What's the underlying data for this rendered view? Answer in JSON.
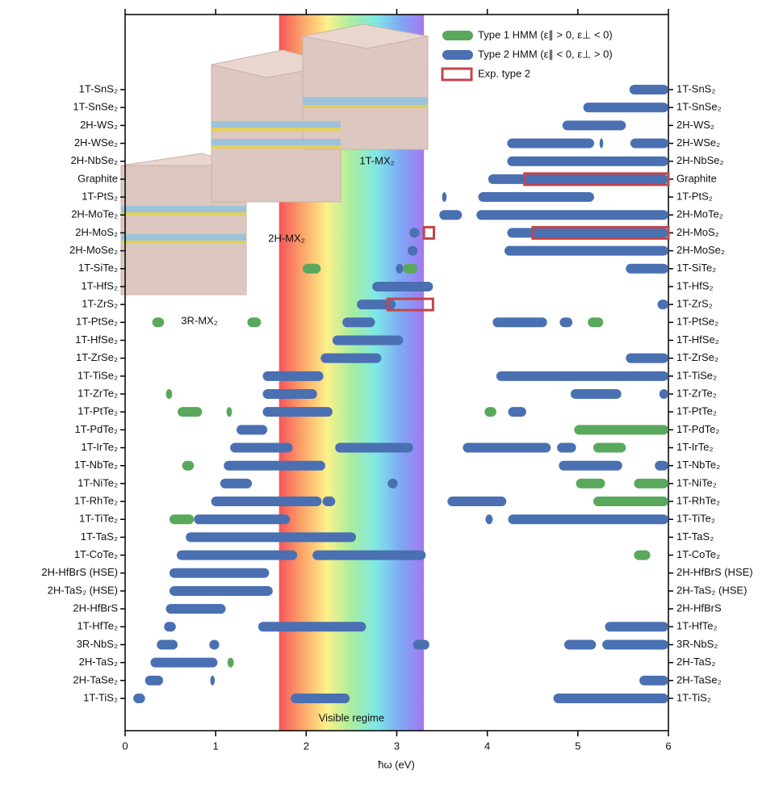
{
  "chart_data": {
    "type": "range_bar",
    "xlabel": "ħω (eV)",
    "xlim": [
      0,
      6
    ],
    "xticks": [
      0,
      1,
      2,
      3,
      4,
      5,
      6
    ],
    "band_label": "Visible regime",
    "band_range": [
      1.7,
      3.3
    ],
    "annotations": [
      "3R-MX₂",
      "2H-MX₂",
      "1T-MX₂"
    ],
    "legend": "upper right",
    "categories": [
      "1T-SnS₂",
      "1T-SnSe₂",
      "2H-WS₂",
      "2H-WSe₂",
      "2H-NbSe₂",
      "Graphite",
      "1T-PtS₂",
      "2H-MoTe₂",
      "2H-MoS₂",
      "2H-MoSe₂",
      "1T-SiTe₂",
      "1T-HfS₂",
      "1T-ZrS₂",
      "1T-PtSe₂",
      "1T-HfSe₂",
      "1T-ZrSe₂",
      "1T-TiSe₂",
      "1T-ZrTe₂",
      "1T-PtTe₂",
      "1T-PdTe₂",
      "1T-IrTe₂",
      "1T-NbTe₂",
      "1T-NiTe₂",
      "1T-RhTe₂",
      "1T-TiTe₂",
      "1T-TaS₂",
      "1T-CoTe₂",
      "2H-HfBrS (HSE)",
      "2H-TaS₂ (HSE)",
      "2H-HfBrS",
      "1T-HfTe₂",
      "3R-NbS₂",
      "2H-TaS₂",
      "2H-TaSe₂",
      "1T-TiS₂"
    ],
    "series": [
      {
        "name": "Type 1 HMM (ε∥ > 0, ε⊥ < 0)",
        "color": "#5aa85c",
        "style": "bar",
        "values": [
          [],
          [],
          [],
          [],
          [],
          [],
          [],
          [],
          [],
          [],
          [
            [
              1.96,
              2.16
            ],
            [
              3.07,
              3.23
            ]
          ],
          [],
          [],
          [
            [
              0.3,
              0.43
            ],
            [
              1.35,
              1.5
            ],
            [
              5.11,
              5.28
            ]
          ],
          [],
          [],
          [],
          [
            [
              0.45,
              0.52
            ]
          ],
          [
            [
              0.58,
              0.85
            ],
            [
              1.12,
              1.18
            ],
            [
              3.97,
              4.1
            ]
          ],
          [
            [
              4.96,
              6.0
            ]
          ],
          [
            [
              5.17,
              5.53
            ]
          ],
          [
            [
              0.63,
              0.76
            ]
          ],
          [
            [
              4.98,
              5.3
            ],
            [
              5.62,
              6.0
            ]
          ],
          [
            [
              5.17,
              6.0
            ]
          ],
          [
            [
              0.49,
              0.76
            ]
          ],
          [],
          [
            [
              5.62,
              5.8
            ]
          ],
          [],
          [],
          [],
          [],
          [],
          [
            [
              1.13,
              1.2
            ]
          ],
          [],
          []
        ]
      },
      {
        "name": "Type 2 HMM (ε∥ < 0, ε⊥ > 0)",
        "color": "#4a70b2",
        "style": "bar",
        "values": [
          [
            [
              5.57,
              6.0
            ]
          ],
          [
            [
              5.06,
              6.0
            ]
          ],
          [
            [
              4.83,
              5.53
            ]
          ],
          [
            [
              4.22,
              5.18
            ],
            [
              5.24,
              5.28
            ],
            [
              5.58,
              6.0
            ]
          ],
          [
            [
              4.22,
              6.0
            ]
          ],
          [
            [
              4.01,
              6.0
            ]
          ],
          [
            [
              3.5,
              3.55
            ],
            [
              3.9,
              5.18
            ]
          ],
          [
            [
              3.47,
              3.72
            ],
            [
              3.88,
              6.0
            ]
          ],
          [
            [
              3.14,
              3.25
            ],
            [
              4.22,
              6.0
            ]
          ],
          [
            [
              3.12,
              3.23
            ],
            [
              4.19,
              6.0
            ]
          ],
          [
            [
              2.99,
              3.07
            ],
            [
              5.53,
              6.0
            ]
          ],
          [
            [
              2.73,
              3.4
            ]
          ],
          [
            [
              2.56,
              2.99
            ],
            [
              5.88,
              6.0
            ]
          ],
          [
            [
              2.4,
              2.76
            ],
            [
              4.06,
              4.66
            ],
            [
              4.8,
              4.94
            ]
          ],
          [
            [
              2.29,
              3.07
            ]
          ],
          [
            [
              2.16,
              2.83
            ],
            [
              5.53,
              6.0
            ]
          ],
          [
            [
              1.52,
              2.19
            ],
            [
              4.1,
              6.0
            ]
          ],
          [
            [
              1.52,
              2.12
            ],
            [
              4.92,
              5.48
            ],
            [
              5.9,
              6.0
            ]
          ],
          [
            [
              1.52,
              2.29
            ],
            [
              4.23,
              4.43
            ]
          ],
          [
            [
              1.23,
              1.57
            ]
          ],
          [
            [
              1.16,
              1.85
            ],
            [
              2.32,
              3.18
            ],
            [
              3.73,
              4.7
            ],
            [
              4.77,
              4.98
            ]
          ],
          [
            [
              1.09,
              2.21
            ],
            [
              4.79,
              5.49
            ],
            [
              5.85,
              6.0
            ]
          ],
          [
            [
              1.05,
              1.4
            ],
            [
              2.9,
              3.01
            ]
          ],
          [
            [
              0.95,
              2.17
            ],
            [
              2.18,
              2.32
            ],
            [
              3.56,
              4.21
            ]
          ],
          [
            [
              0.76,
              1.82
            ],
            [
              3.98,
              4.06
            ],
            [
              4.23,
              6.0
            ]
          ],
          [
            [
              0.67,
              2.55
            ]
          ],
          [
            [
              0.57,
              1.9
            ],
            [
              2.07,
              3.32
            ]
          ],
          [
            [
              0.49,
              1.59
            ]
          ],
          [
            [
              0.49,
              1.63
            ]
          ],
          [
            [
              0.45,
              1.11
            ]
          ],
          [
            [
              0.43,
              0.56
            ],
            [
              1.47,
              2.66
            ],
            [
              5.3,
              6.0
            ]
          ],
          [
            [
              0.35,
              0.58
            ],
            [
              0.93,
              1.04
            ],
            [
              3.18,
              3.36
            ],
            [
              4.85,
              5.2
            ],
            [
              5.27,
              6.0
            ]
          ],
          [
            [
              0.28,
              1.02
            ]
          ],
          [
            [
              0.22,
              0.42
            ],
            [
              0.94,
              0.99
            ],
            [
              5.68,
              6.0
            ]
          ],
          [
            [
              0.09,
              0.22
            ],
            [
              1.83,
              2.48
            ],
            [
              4.73,
              6.0
            ]
          ]
        ]
      },
      {
        "name": "Exp. type 2",
        "color": "#c4444a",
        "style": "outline",
        "values": [
          [],
          [],
          [],
          [],
          [],
          [
            [
              4.41,
              6.0
            ]
          ],
          [],
          [],
          [
            [
              3.3,
              3.41
            ],
            [
              4.5,
              6.0
            ]
          ],
          [],
          [],
          [],
          [
            [
              2.9,
              3.4
            ]
          ],
          [],
          [],
          [],
          [],
          [],
          [],
          [],
          [],
          [],
          [],
          [],
          [],
          [],
          [],
          [],
          [],
          [],
          [],
          [],
          [],
          [],
          []
        ]
      }
    ]
  }
}
